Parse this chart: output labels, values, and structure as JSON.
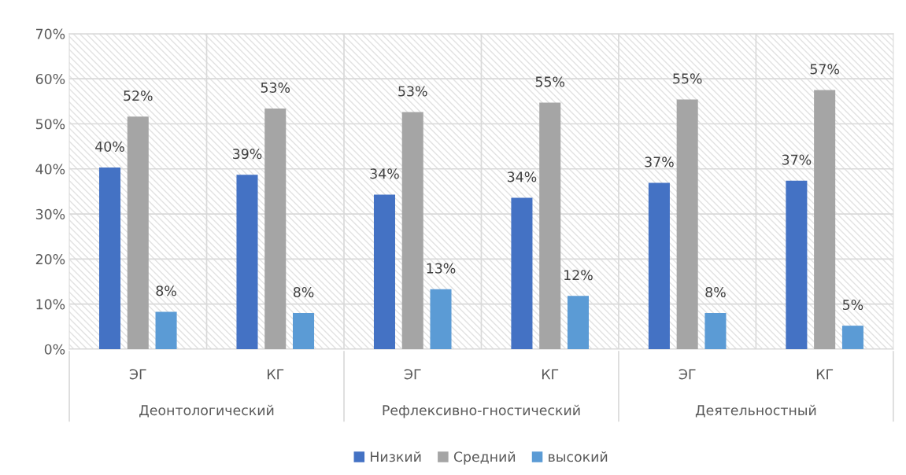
{
  "chart_data": {
    "type": "bar",
    "categories": [
      "ЭГ",
      "КГ",
      "ЭГ",
      "КГ",
      "ЭГ",
      "КГ"
    ],
    "annotations": [
      "Деонтологический",
      "Рефлексивно-гностический",
      "Деятельностный"
    ],
    "series": [
      {
        "name": "Низкий",
        "color": "#4472c4",
        "values": [
          40.3,
          38.7,
          34.3,
          33.6,
          36.9,
          37.4
        ],
        "value_labels": [
          "40%",
          "39%",
          "34%",
          "34%",
          "37%",
          "37%"
        ]
      },
      {
        "name": "Средний",
        "color": "#a5a5a5",
        "values": [
          51.6,
          53.4,
          52.6,
          54.7,
          55.4,
          57.5
        ],
        "value_labels": [
          "52%",
          "53%",
          "53%",
          "55%",
          "55%",
          "57%"
        ]
      },
      {
        "name": "высокий",
        "color": "#5b9bd5",
        "values": [
          8.3,
          8.0,
          13.3,
          11.8,
          8.0,
          5.2
        ],
        "value_labels": [
          "8%",
          "8%",
          "13%",
          "12%",
          "8%",
          "5%"
        ]
      }
    ],
    "ylim": [
      0,
      70
    ],
    "yticks": [
      {
        "value": 0,
        "label": "0%"
      },
      {
        "value": 10,
        "label": "10%"
      },
      {
        "value": 20,
        "label": "20%"
      },
      {
        "value": 30,
        "label": "30%"
      },
      {
        "value": 40,
        "label": "40%"
      },
      {
        "value": 50,
        "label": "50%"
      },
      {
        "value": 60,
        "label": "60%"
      },
      {
        "value": 70,
        "label": "70%"
      }
    ],
    "grid": true,
    "legend": "bottom"
  }
}
